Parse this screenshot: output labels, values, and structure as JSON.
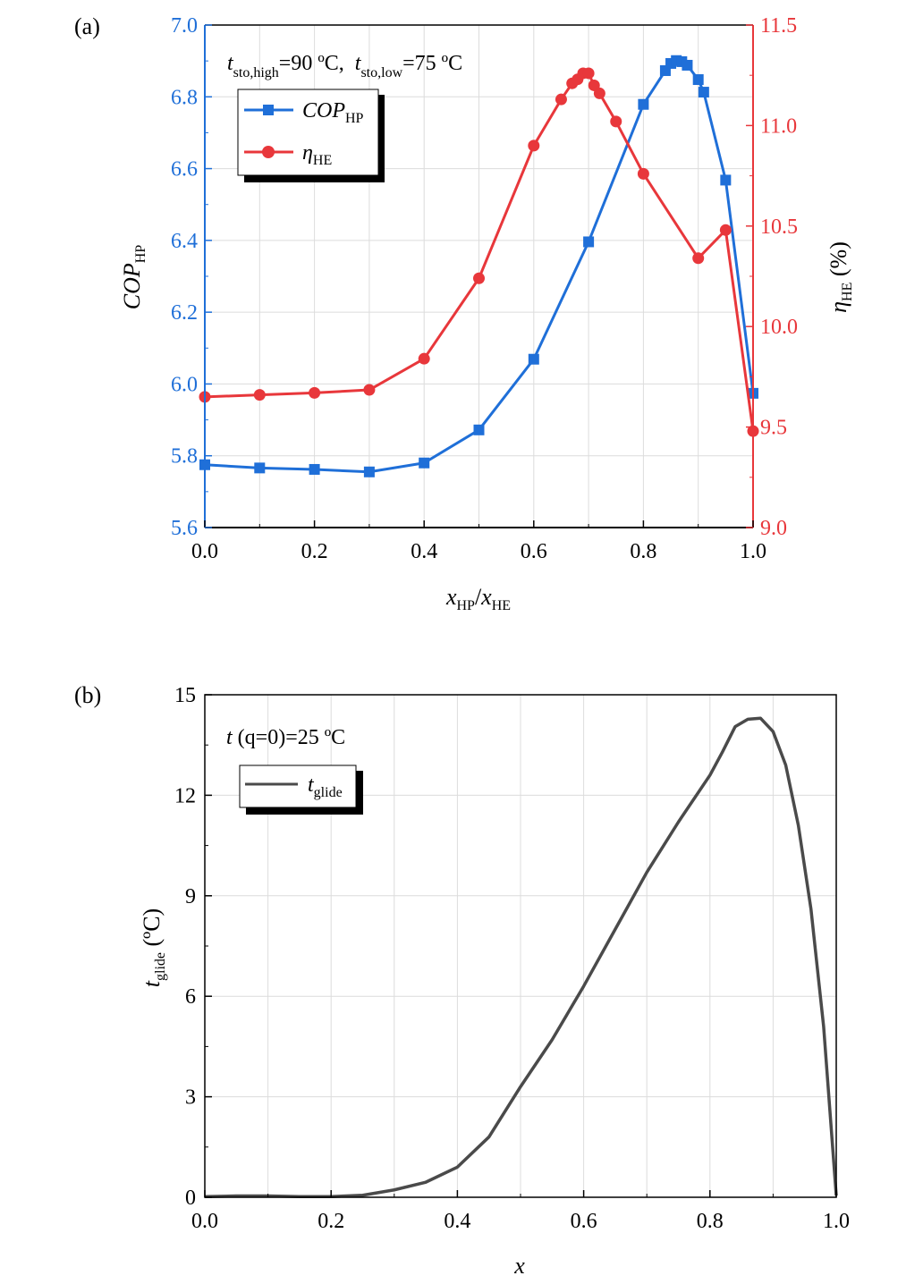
{
  "colors": {
    "cop": "#1f6fd8",
    "eta": "#e8373b",
    "glide": "#4a4a4a",
    "grid": "#dcdcdc",
    "axis": "#000000"
  },
  "panel_a": {
    "label": "(a)",
    "annotation": {
      "t1_main": "t",
      "t1_sub": "sto,high",
      "t1_val": "=90 ºC,",
      "t2_main": "t",
      "t2_sub": "sto,low",
      "t2_val": "=75 ºC"
    },
    "ylabel_left": {
      "main": "COP",
      "sub": "HP"
    },
    "ylabel_right": {
      "main": "η",
      "sub": "HE",
      "unit": " (%)"
    },
    "xlabel": {
      "a": "x",
      "a_sub": "HP",
      "slash": "/",
      "b": "x",
      "b_sub": "HE"
    },
    "legend": [
      {
        "main": "COP",
        "sub": "HP"
      },
      {
        "main": "η",
        "sub": "HE"
      }
    ]
  },
  "panel_b": {
    "label": "(b)",
    "annotation": {
      "t": "t",
      "q": " (q",
      "rest": "=0)=25 ºC"
    },
    "ylabel": {
      "main": "t",
      "sub": "glide",
      "unit": " (ºC)"
    },
    "xlabel": "x",
    "legend": [
      {
        "main": "t",
        "sub": "glide"
      }
    ]
  },
  "chart_data": [
    {
      "type": "line",
      "xlim": [
        0,
        1.0
      ],
      "xticks": [
        "0.0",
        "0.2",
        "0.4",
        "0.6",
        "0.8",
        "1.0"
      ],
      "y_left_lim": [
        5.6,
        7.0
      ],
      "y_left_ticks": [
        "5.6",
        "5.8",
        "6.0",
        "6.2",
        "6.4",
        "6.6",
        "6.8",
        "7.0"
      ],
      "y_right_lim": [
        9.0,
        11.5
      ],
      "y_right_ticks": [
        "9.0",
        "9.5",
        "10.0",
        "10.5",
        "11.0",
        "11.5"
      ],
      "grid": true,
      "legend_position": "top-left",
      "series": [
        {
          "name": "COP_HP",
          "axis": "left",
          "marker": "square",
          "x": [
            0,
            0.1,
            0.2,
            0.3,
            0.4,
            0.5,
            0.6,
            0.7,
            0.8,
            0.84,
            0.85,
            0.86,
            0.87,
            0.88,
            0.9,
            0.91,
            0.95,
            1.0
          ],
          "y": [
            5.775,
            5.766,
            5.762,
            5.755,
            5.78,
            5.872,
            6.069,
            6.396,
            6.779,
            6.873,
            6.893,
            6.901,
            6.898,
            6.888,
            6.848,
            6.813,
            6.568,
            5.974
          ]
        },
        {
          "name": "η_HE",
          "axis": "right",
          "marker": "circle",
          "x": [
            0,
            0.1,
            0.2,
            0.3,
            0.4,
            0.5,
            0.6,
            0.65,
            0.67,
            0.68,
            0.69,
            0.7,
            0.71,
            0.72,
            0.75,
            0.8,
            0.9,
            0.95,
            1.0
          ],
          "y": [
            9.65,
            9.66,
            9.67,
            9.685,
            9.84,
            10.24,
            10.9,
            11.13,
            11.21,
            11.23,
            11.26,
            11.26,
            11.2,
            11.16,
            11.02,
            10.76,
            10.34,
            10.48,
            9.48
          ]
        }
      ]
    },
    {
      "type": "line",
      "xlim": [
        0,
        1.0
      ],
      "xticks": [
        "0.0",
        "0.2",
        "0.4",
        "0.6",
        "0.8",
        "1.0"
      ],
      "ylim": [
        0,
        15
      ],
      "yticks": [
        "0",
        "3",
        "6",
        "9",
        "12",
        "15"
      ],
      "grid": true,
      "legend_position": "top-left",
      "series": [
        {
          "name": "t_glide",
          "x": [
            0,
            0.05,
            0.1,
            0.15,
            0.2,
            0.25,
            0.3,
            0.35,
            0.4,
            0.45,
            0.5,
            0.55,
            0.6,
            0.65,
            0.7,
            0.75,
            0.8,
            0.82,
            0.84,
            0.86,
            0.88,
            0.9,
            0.92,
            0.94,
            0.96,
            0.98,
            1.0
          ],
          "y": [
            0.02,
            0.04,
            0.04,
            0.02,
            0.02,
            0.06,
            0.22,
            0.45,
            0.9,
            1.8,
            3.3,
            4.7,
            6.3,
            8.0,
            9.7,
            11.2,
            12.6,
            13.3,
            14.05,
            14.27,
            14.3,
            13.9,
            12.9,
            11.1,
            8.6,
            5.1,
            0.05
          ]
        }
      ]
    }
  ]
}
